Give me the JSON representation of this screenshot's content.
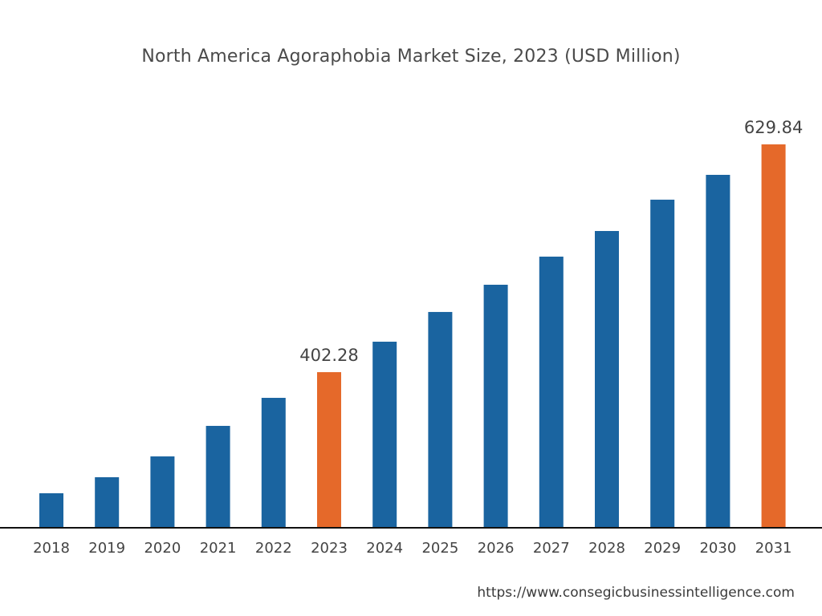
{
  "chart_data": {
    "type": "bar",
    "title": "North America Agoraphobia Market Size, 2023 (USD Million)",
    "xlabel": "",
    "ylabel": "",
    "categories": [
      "2018",
      "2019",
      "2020",
      "2021",
      "2022",
      "2023",
      "2024",
      "2025",
      "2026",
      "2027",
      "2028",
      "2029",
      "2030",
      "2031"
    ],
    "values": [
      281.3,
      297.3,
      318.1,
      348.6,
      376.6,
      402.28,
      432.7,
      462.4,
      489.6,
      517.7,
      543.3,
      574.6,
      599.4,
      629.84
    ],
    "data_labels": {
      "2023": "402.28",
      "2031": "629.84"
    },
    "highlighted": [
      "2023",
      "2031"
    ],
    "ylim": [
      247.6,
      629.84
    ],
    "y_axis_visible": false,
    "grid": false,
    "colors": {
      "default": "#1a64a0",
      "highlight": "#e5692a",
      "axis": "#111111"
    }
  },
  "source": "https://www.consegicbusinessintelligence.com"
}
